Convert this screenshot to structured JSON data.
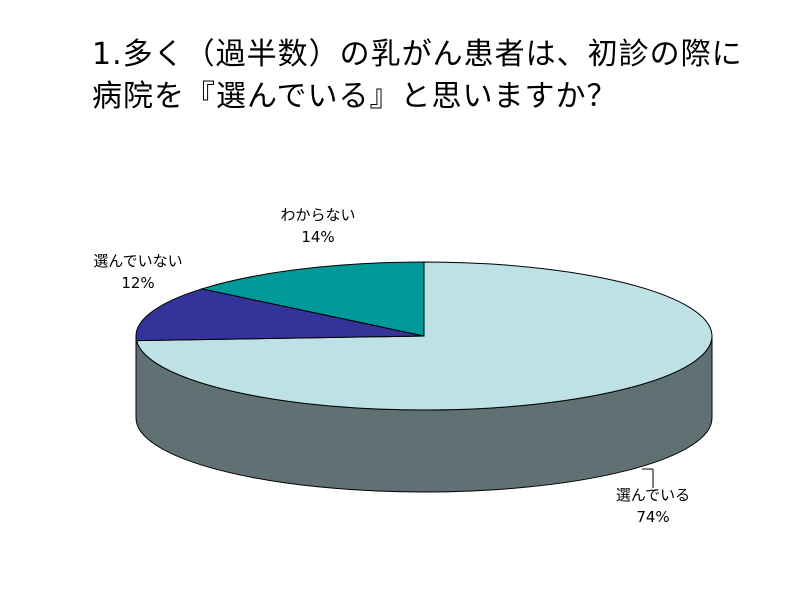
{
  "title_lines": [
    "1.多く（過半数）の乳がん患者は、初診の際に",
    "病院を『選んでいる』と思いますか？"
  ],
  "chart_data": {
    "type": "pie",
    "style": "3d",
    "slices": [
      {
        "label": "選んでいる",
        "percent_label": "74%",
        "value": 74,
        "color": "#bde1e5",
        "side_color": "#5f7172"
      },
      {
        "label": "選んでいない",
        "percent_label": "12%",
        "value": 12,
        "color": "#333399",
        "side_color": "#1f1f66"
      },
      {
        "label": "わからない",
        "percent_label": "14%",
        "value": 14,
        "color": "#009999",
        "side_color": "#006666"
      }
    ]
  }
}
